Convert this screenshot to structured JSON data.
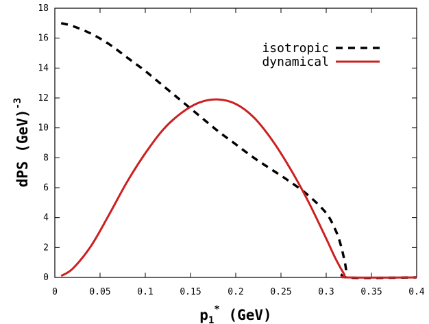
{
  "chart_data": {
    "type": "line",
    "xlabel": {
      "main": "p",
      "sub": "1",
      "sup": "*",
      "rest": " (GeV)"
    },
    "ylabel": {
      "main": "dPS (GeV)",
      "sup": "-3"
    },
    "xlim": [
      0,
      0.4
    ],
    "ylim": [
      0,
      18
    ],
    "x_ticks": [
      "0",
      "0.05",
      "0.1",
      "0.15",
      "0.2",
      "0.25",
      "0.3",
      "0.35",
      "0.4"
    ],
    "y_ticks": [
      "0",
      "2",
      "4",
      "6",
      "8",
      "10",
      "12",
      "14",
      "16",
      "18"
    ],
    "grid": false,
    "legend_position": "top-right",
    "series": [
      {
        "name": "isotropic",
        "color": "#000000",
        "dash": "dashed",
        "points": [
          [
            0.007,
            17.0
          ],
          [
            0.02,
            16.8
          ],
          [
            0.04,
            16.3
          ],
          [
            0.06,
            15.6
          ],
          [
            0.08,
            14.7
          ],
          [
            0.1,
            13.8
          ],
          [
            0.12,
            12.8
          ],
          [
            0.14,
            11.8
          ],
          [
            0.16,
            10.8
          ],
          [
            0.18,
            9.8
          ],
          [
            0.2,
            8.9
          ],
          [
            0.22,
            8.0
          ],
          [
            0.24,
            7.2
          ],
          [
            0.26,
            6.4
          ],
          [
            0.28,
            5.5
          ],
          [
            0.3,
            4.3
          ],
          [
            0.31,
            3.2
          ],
          [
            0.315,
            2.4
          ],
          [
            0.32,
            1.2
          ],
          [
            0.322,
            0.5
          ],
          [
            0.323,
            0.0
          ],
          [
            0.4,
            0.0
          ]
        ]
      },
      {
        "name": "dynamical",
        "color": "#cc1f1f",
        "dash": "solid",
        "points": [
          [
            0.007,
            0.1
          ],
          [
            0.02,
            0.6
          ],
          [
            0.04,
            2.1
          ],
          [
            0.06,
            4.2
          ],
          [
            0.08,
            6.4
          ],
          [
            0.1,
            8.3
          ],
          [
            0.12,
            9.9
          ],
          [
            0.14,
            11.0
          ],
          [
            0.16,
            11.7
          ],
          [
            0.18,
            11.9
          ],
          [
            0.2,
            11.6
          ],
          [
            0.22,
            10.7
          ],
          [
            0.24,
            9.2
          ],
          [
            0.26,
            7.3
          ],
          [
            0.28,
            5.1
          ],
          [
            0.3,
            2.6
          ],
          [
            0.31,
            1.3
          ],
          [
            0.32,
            0.2
          ],
          [
            0.323,
            0.0
          ],
          [
            0.4,
            0.0
          ]
        ]
      }
    ]
  }
}
